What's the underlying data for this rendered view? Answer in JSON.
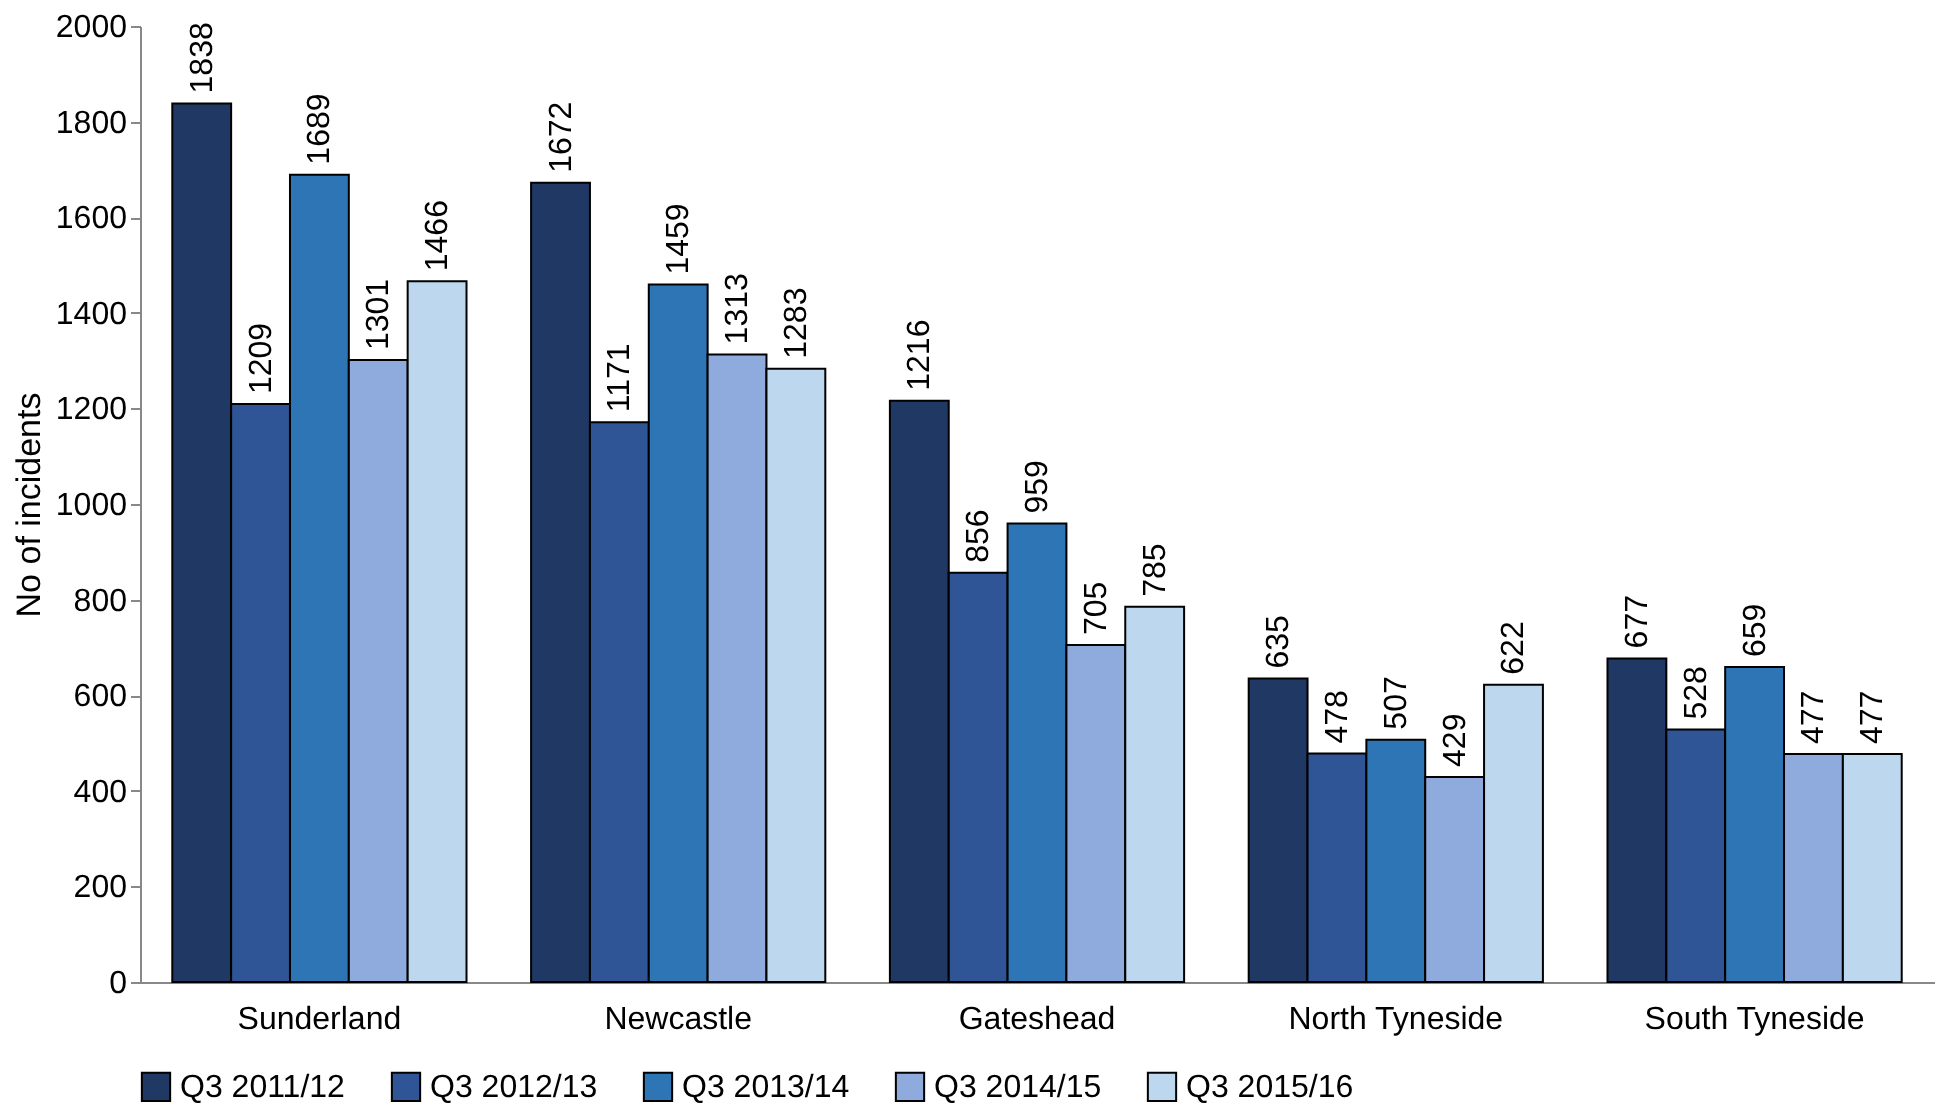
{
  "chart_data": {
    "type": "bar",
    "ylabel": "No of incidents",
    "categories": [
      "Sunderland",
      "Newcastle",
      "Gateshead",
      "North Tyneside",
      "South Tyneside"
    ],
    "series": [
      {
        "name": "Q3 2011/12",
        "color": "#203864",
        "values": [
          1838,
          1672,
          1216,
          635,
          677
        ]
      },
      {
        "name": "Q3 2012/13",
        "color": "#2f5597",
        "values": [
          1209,
          1171,
          856,
          478,
          528
        ]
      },
      {
        "name": "Q3 2013/14",
        "color": "#2e75b6",
        "values": [
          1689,
          1459,
          959,
          507,
          659
        ]
      },
      {
        "name": "Q3 2014/15",
        "color": "#8faadc",
        "values": [
          1301,
          1313,
          705,
          429,
          477
        ]
      },
      {
        "name": "Q3 2015/16",
        "color": "#bdd7ee",
        "values": [
          1466,
          1283,
          785,
          622,
          477
        ]
      }
    ],
    "ylim": [
      0,
      2000
    ],
    "yticks": [
      0,
      200,
      400,
      600,
      800,
      1000,
      1200,
      1400,
      1600,
      1800,
      2000
    ],
    "data_labels": true,
    "legend": "bottom",
    "grid": false
  }
}
